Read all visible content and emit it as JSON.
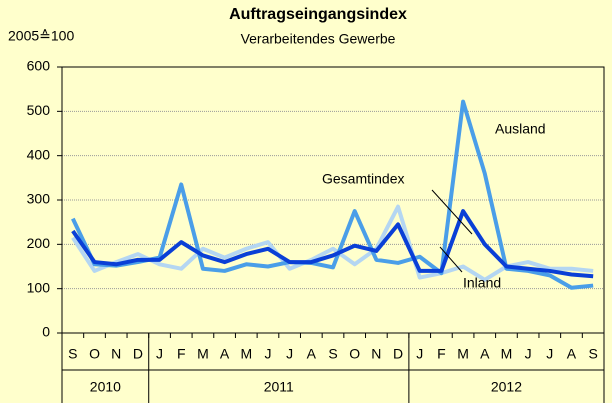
{
  "chart_data": {
    "type": "line",
    "title": "Auftragseingangsindex",
    "subtitle": "Verarbeitendes Gewerbe",
    "y_label": "2005≙100",
    "categories": [
      "S",
      "O",
      "N",
      "D",
      "J",
      "F",
      "M",
      "A",
      "M",
      "J",
      "J",
      "A",
      "S",
      "O",
      "N",
      "D",
      "J",
      "F",
      "M",
      "A",
      "M",
      "J",
      "J",
      "A",
      "S"
    ],
    "years": [
      "2010",
      "2011",
      "2012"
    ],
    "series": [
      {
        "name": "Inland",
        "color": "#b4d6f2",
        "values": [
          215,
          140,
          160,
          178,
          155,
          145,
          190,
          170,
          190,
          205,
          145,
          165,
          190,
          155,
          190,
          285,
          125,
          135,
          150,
          120,
          150,
          160,
          145,
          145,
          140
        ]
      },
      {
        "name": "Ausland",
        "color": "#4a9ee8",
        "values": [
          258,
          155,
          152,
          160,
          170,
          335,
          145,
          140,
          155,
          150,
          160,
          158,
          148,
          275,
          165,
          158,
          172,
          135,
          522,
          360,
          145,
          140,
          130,
          102,
          107
        ]
      },
      {
        "name": "Gesamtindex",
        "color": "#0a3fd6",
        "values": [
          230,
          160,
          155,
          165,
          165,
          205,
          175,
          160,
          178,
          190,
          160,
          160,
          175,
          197,
          185,
          245,
          140,
          140,
          275,
          200,
          150,
          145,
          140,
          132,
          128
        ]
      }
    ],
    "ylim": [
      0,
      600
    ],
    "yticks": [
      0,
      100,
      200,
      300,
      400,
      500,
      600
    ],
    "grid": true
  }
}
